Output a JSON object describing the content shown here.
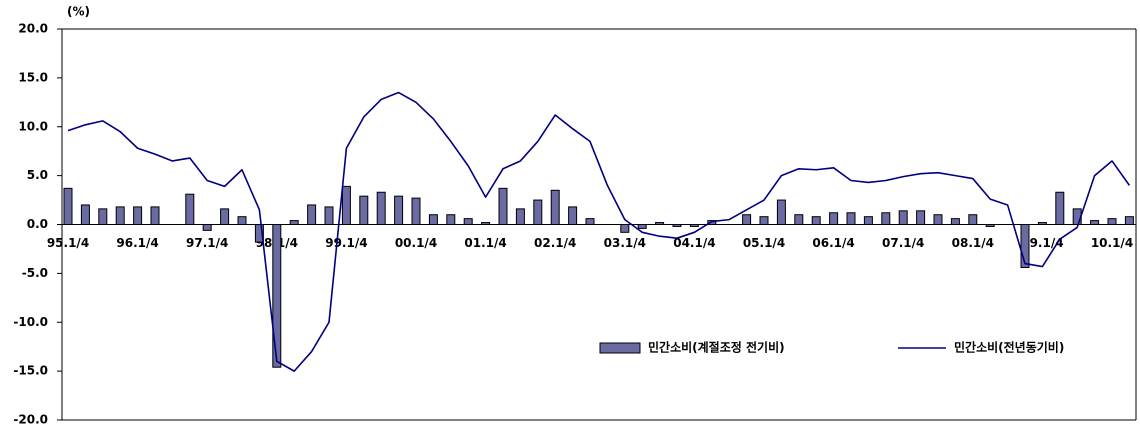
{
  "chart_data": {
    "type": "combo",
    "y_unit": "(%)",
    "categories": [
      "95.1/4",
      null,
      null,
      null,
      "96.1/4",
      null,
      null,
      null,
      "97.1/4",
      null,
      null,
      null,
      "98.1/4",
      null,
      null,
      null,
      "99.1/4",
      null,
      null,
      null,
      "00.1/4",
      null,
      null,
      null,
      "01.1/4",
      null,
      null,
      null,
      "02.1/4",
      null,
      null,
      null,
      "03.1/4",
      null,
      null,
      null,
      "04.1/4",
      null,
      null,
      null,
      "05.1/4",
      null,
      null,
      null,
      "06.1/4",
      null,
      null,
      null,
      "07.1/4",
      null,
      null,
      null,
      "08.1/4",
      null,
      null,
      null,
      "09.1/4",
      null,
      null,
      null,
      "10.1/4",
      null
    ],
    "series": [
      {
        "name": "민간소비(계절조정 전기비)",
        "type": "bar",
        "color": "#6b6ba3",
        "values": [
          3.7,
          2.0,
          1.6,
          1.8,
          1.8,
          1.8,
          0.0,
          3.1,
          -0.6,
          1.6,
          0.8,
          -1.8,
          -14.6,
          0.4,
          2.0,
          1.8,
          3.9,
          2.9,
          3.3,
          2.9,
          2.7,
          1.0,
          1.0,
          0.6,
          0.2,
          3.7,
          1.6,
          2.5,
          3.5,
          1.8,
          0.6,
          0.0,
          -0.8,
          -0.4,
          0.2,
          -0.2,
          -0.2,
          0.4,
          0.0,
          1.0,
          0.8,
          2.5,
          1.0,
          0.8,
          1.2,
          1.2,
          0.8,
          1.2,
          1.4,
          1.4,
          1.0,
          0.6,
          1.0,
          -0.2,
          0.0,
          -4.4,
          0.2,
          3.3,
          1.6,
          0.4,
          0.6,
          0.8
        ]
      },
      {
        "name": "민간소비(전년동기비)",
        "type": "line",
        "color": "#000080",
        "values": [
          9.6,
          10.2,
          10.6,
          9.5,
          7.8,
          7.2,
          6.5,
          6.8,
          4.5,
          3.9,
          5.6,
          1.5,
          -14.0,
          -15.0,
          -13.0,
          -10.0,
          7.8,
          11.0,
          12.8,
          13.5,
          12.5,
          10.8,
          8.5,
          6.0,
          2.8,
          5.7,
          6.5,
          8.5,
          11.2,
          9.8,
          8.5,
          4.0,
          0.5,
          -0.8,
          -1.2,
          -1.4,
          -0.8,
          0.3,
          0.5,
          1.5,
          2.5,
          5.0,
          5.7,
          5.6,
          5.8,
          4.5,
          4.3,
          4.5,
          4.9,
          5.2,
          5.3,
          5.0,
          4.7,
          2.6,
          2.0,
          -4.0,
          -4.3,
          -1.5,
          -0.3,
          5.0,
          6.5,
          4.0
        ]
      }
    ],
    "ylim": [
      -20,
      20
    ],
    "yticks": [
      {
        "value": -20,
        "label": "-20.0"
      },
      {
        "value": -15,
        "label": "-15.0"
      },
      {
        "value": -10,
        "label": "-10.0"
      },
      {
        "value": -5,
        "label": "-5.0"
      },
      {
        "value": 0,
        "label": "0.0"
      },
      {
        "value": 5,
        "label": "5.0"
      },
      {
        "value": 10,
        "label": "10.0"
      },
      {
        "value": 15,
        "label": "15.0"
      },
      {
        "value": 20,
        "label": "20.0"
      }
    ],
    "grid": false,
    "legend": "lower right"
  }
}
